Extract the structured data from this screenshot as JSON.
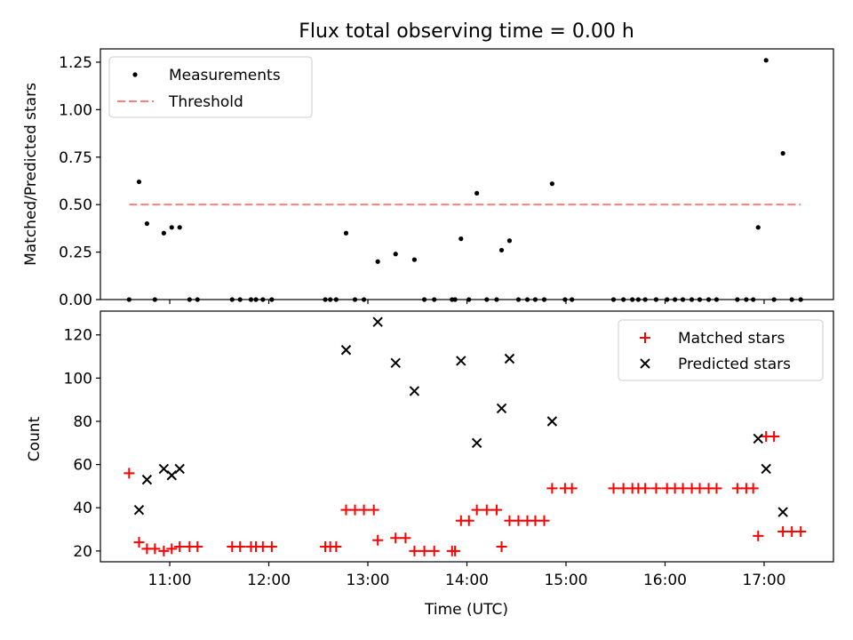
{
  "chart_data": [
    {
      "type": "scatter",
      "title": "Flux total observing time = 0.00 h",
      "xlabel": "",
      "ylabel": "Matched/Predicted stars",
      "xlim": [
        10.3,
        17.7
      ],
      "ylim": [
        0.0,
        1.32
      ],
      "yticks": [
        0.0,
        0.25,
        0.5,
        0.75,
        1.0,
        1.25
      ],
      "ytick_labels": [
        "0.00",
        "0.25",
        "0.50",
        "0.75",
        "1.00",
        "1.25"
      ],
      "legend_position": "top-left",
      "series": [
        {
          "name": "Measurements",
          "marker": "dot",
          "color": "#000000",
          "x": [
            10.59,
            10.69,
            10.77,
            10.85,
            10.94,
            11.02,
            11.1,
            11.2,
            11.28,
            11.63,
            11.71,
            11.82,
            11.87,
            11.94,
            12.03,
            12.57,
            12.62,
            12.68,
            12.78,
            12.87,
            12.96,
            13.1,
            13.28,
            13.47,
            13.57,
            13.67,
            13.85,
            13.88,
            13.94,
            14.02,
            14.1,
            14.2,
            14.3,
            14.35,
            14.43,
            14.52,
            14.61,
            14.69,
            14.78,
            14.86,
            14.99,
            15.06,
            15.48,
            15.58,
            15.67,
            15.73,
            15.8,
            15.91,
            16.02,
            16.1,
            16.18,
            16.27,
            16.35,
            16.44,
            16.52,
            16.73,
            16.82,
            16.89,
            16.94,
            17.02,
            17.1,
            17.19,
            17.28,
            17.37
          ],
          "y": [
            0.0,
            0.62,
            0.4,
            0.0,
            0.35,
            0.38,
            0.38,
            0.0,
            0.0,
            0.0,
            0.0,
            0.0,
            0.0,
            0.0,
            0.0,
            0.0,
            0.0,
            0.0,
            0.35,
            0.0,
            0.0,
            0.2,
            0.24,
            0.21,
            0.0,
            0.0,
            0.0,
            0.0,
            0.32,
            0.0,
            0.56,
            0.0,
            0.0,
            0.26,
            0.31,
            0.0,
            0.0,
            0.0,
            0.0,
            0.61,
            0.0,
            0.0,
            0.0,
            0.0,
            0.0,
            0.0,
            0.0,
            0.0,
            0.0,
            0.0,
            0.0,
            0.0,
            0.0,
            0.0,
            0.0,
            0.0,
            0.0,
            0.0,
            0.38,
            1.26,
            0.0,
            0.77,
            0.0,
            0.0
          ]
        },
        {
          "name": "Threshold",
          "marker": "dashed-line",
          "color": "#ff7f7f",
          "x": [
            10.59,
            17.37
          ],
          "y": [
            0.5,
            0.5
          ]
        }
      ]
    },
    {
      "type": "scatter",
      "title": "",
      "xlabel": "Time (UTC)",
      "ylabel": "Count",
      "xlim": [
        10.3,
        17.7
      ],
      "ylim": [
        15,
        131
      ],
      "yticks": [
        20,
        40,
        60,
        80,
        100,
        120
      ],
      "ytick_labels": [
        "20",
        "40",
        "60",
        "80",
        "100",
        "120"
      ],
      "xticks": [
        11,
        12,
        13,
        14,
        15,
        16,
        17
      ],
      "xtick_labels": [
        "11:00",
        "12:00",
        "13:00",
        "14:00",
        "15:00",
        "16:00",
        "17:00"
      ],
      "legend_position": "top-right",
      "series": [
        {
          "name": "Matched stars",
          "marker": "plus",
          "color": "#ff0000",
          "x": [
            10.59,
            10.69,
            10.77,
            10.85,
            10.94,
            11.02,
            11.1,
            11.2,
            11.28,
            11.63,
            11.71,
            11.82,
            11.87,
            11.94,
            12.03,
            12.57,
            12.62,
            12.68,
            12.78,
            12.87,
            12.96,
            13.06,
            13.1,
            13.28,
            13.38,
            13.47,
            13.57,
            13.67,
            13.85,
            13.88,
            13.94,
            14.02,
            14.1,
            14.2,
            14.3,
            14.35,
            14.43,
            14.52,
            14.61,
            14.69,
            14.78,
            14.86,
            14.99,
            15.06,
            15.48,
            15.58,
            15.67,
            15.73,
            15.8,
            15.91,
            16.02,
            16.1,
            16.18,
            16.27,
            16.35,
            16.44,
            16.52,
            16.73,
            16.82,
            16.89,
            16.94,
            17.02,
            17.1,
            17.19,
            17.28,
            17.37
          ],
          "y": [
            56,
            24,
            21,
            21,
            20,
            21,
            22,
            22,
            22,
            22,
            22,
            22,
            22,
            22,
            22,
            22,
            22,
            22,
            39,
            39,
            39,
            39,
            25,
            26,
            26,
            20,
            20,
            20,
            20,
            20,
            34,
            34,
            39,
            39,
            39,
            22,
            34,
            34,
            34,
            34,
            34,
            49,
            49,
            49,
            49,
            49,
            49,
            49,
            49,
            49,
            49,
            49,
            49,
            49,
            49,
            49,
            49,
            49,
            49,
            49,
            27,
            73,
            73,
            29,
            29,
            29
          ]
        },
        {
          "name": "Predicted stars",
          "marker": "x",
          "color": "#000000",
          "x": [
            10.69,
            10.77,
            10.94,
            11.02,
            11.1,
            12.78,
            13.1,
            13.28,
            13.47,
            13.94,
            14.1,
            14.35,
            14.43,
            14.86,
            16.94,
            17.02,
            17.19
          ],
          "y": [
            39,
            53,
            58,
            55,
            58,
            113,
            126,
            107,
            94,
            108,
            70,
            86,
            109,
            80,
            72,
            58,
            38
          ]
        }
      ]
    }
  ]
}
